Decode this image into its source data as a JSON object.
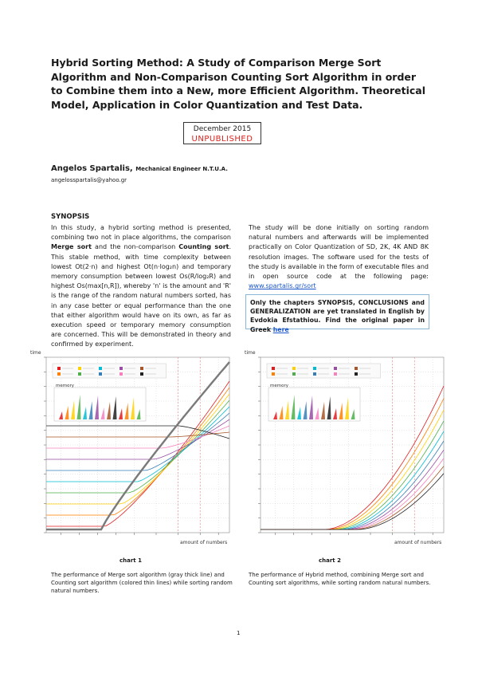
{
  "title": "Hybrid Sorting Method: A Study of Comparison Merge Sort Algorithm and Non-Comparison Counting Sort Algorithm in order to Combine them into a New, more Efficient Algorithm. Theoretical Model, Application in Color Quantization and Test Data.",
  "date": "December 2015",
  "status": "UNPUBLISHED",
  "author": {
    "name": "Angelos Spartalis,",
    "role": "Mechanical Engineer N.T.U.A.",
    "email": "angelosspartalis@yahoo.gr"
  },
  "synopsis": {
    "heading": "SYNOPSIS",
    "p1_a": "In this study, a hybrid sorting method is presented, combining two not in place algorithms, the comparison ",
    "p1_merge": "Merge sort",
    "p1_b": " and the non-comparison ",
    "p1_counting": "Counting sort",
    "p1_c": ". This stable method, with time complexity between lowest Ot(2·n) and highest Ot(n·log₂n) and temporary memory consumption between lowest Os(R/log₂R) and highest Os(max[n,R]), whereby 'n' is the amount and 'R' is the range of the random natural numbers sorted, has in any case better or equal performance than the one that either algorithm would have on its own, as far as execution speed or temporary memory consumption are concerned. This will be demonstrated in theory and confirmed by experiment.",
    "p2": "The study will be done initially on sorting random natural numbers and afterwards will be implemented practically on Color Quantization of SD, 2K, 4K AND 8K resolution images. The software used for the tests of the study is available in the form of executable files and in open source code at the following page: ",
    "p2_link": "www.spartalis.gr/sort",
    "note": "Only the chapters SYNOPSIS, CONCLUSIONS and GENERALIZATION are yet translated in English by Evdokia Efstathiou. Find the original paper in Greek ",
    "note_link": "here"
  },
  "chart1": {
    "label": "chart 1",
    "ylabel": "time",
    "xlabel": "amount of numbers",
    "inset_label": "memory",
    "caption": "The performance of Merge sort algorithm (gray thick line) and Counting sort algorithm (colored thin lines) while sorting random natural numbers."
  },
  "chart2": {
    "label": "chart 2",
    "ylabel": "time",
    "xlabel": "amount of numbers",
    "inset_label": "memory",
    "caption": "The performance of Hybrid method, combining Merge sort and Counting sort algorithms, while sorting random natural numbers."
  },
  "page_number": "1",
  "colors": {
    "status": "#e0201b",
    "link": "#1a56c9",
    "note_border": "#8ab6d8",
    "merge_line": "#7a7a7a",
    "series": [
      "#e41a1c",
      "#ff7f00",
      "#ffd000",
      "#4daf4a",
      "#00bcd4",
      "#377eb8",
      "#984ea3",
      "#f781bf",
      "#a65628",
      "#222222"
    ]
  }
}
